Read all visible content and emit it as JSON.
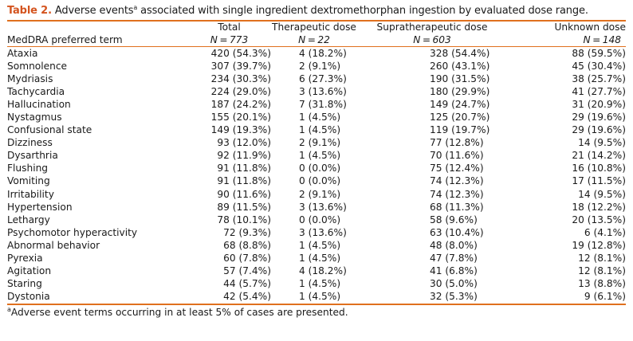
{
  "caption": {
    "label": "Table 2.",
    "text_before": "Adverse events",
    "sup": "a",
    "text_after": " associated with single ingredient dextromethorphan ingestion by evaluated dose range."
  },
  "columns": [
    {
      "title": "",
      "n_label": "MedDRA preferred term"
    },
    {
      "title": "Total",
      "n_label": "N = 773"
    },
    {
      "title": "Therapeutic dose",
      "n_label": "N = 22"
    },
    {
      "title": "Supratherapeutic dose",
      "n_label": "N = 603"
    },
    {
      "title": "Unknown dose",
      "n_label": "N = 148"
    }
  ],
  "rows": [
    {
      "term": "Ataxia",
      "total": "420 (54.3%)",
      "therapeutic": "4 (18.2%)",
      "supra": "328 (54.4%)",
      "unknown": "88 (59.5%)"
    },
    {
      "term": "Somnolence",
      "total": "307 (39.7%)",
      "therapeutic": "2 (9.1%)",
      "supra": "260 (43.1%)",
      "unknown": "45 (30.4%)"
    },
    {
      "term": "Mydriasis",
      "total": "234 (30.3%)",
      "therapeutic": "6 (27.3%)",
      "supra": "190 (31.5%)",
      "unknown": "38 (25.7%)"
    },
    {
      "term": "Tachycardia",
      "total": "224 (29.0%)",
      "therapeutic": "3 (13.6%)",
      "supra": "180 (29.9%)",
      "unknown": "41 (27.7%)"
    },
    {
      "term": "Hallucination",
      "total": "187 (24.2%)",
      "therapeutic": "7 (31.8%)",
      "supra": "149 (24.7%)",
      "unknown": "31 (20.9%)"
    },
    {
      "term": "Nystagmus",
      "total": "155 (20.1%)",
      "therapeutic": "1 (4.5%)",
      "supra": "125 (20.7%)",
      "unknown": "29 (19.6%)"
    },
    {
      "term": "Confusional state",
      "total": "149 (19.3%)",
      "therapeutic": "1 (4.5%)",
      "supra": "119 (19.7%)",
      "unknown": "29 (19.6%)"
    },
    {
      "term": "Dizziness",
      "total": "93 (12.0%)",
      "therapeutic": "2 (9.1%)",
      "supra": "77 (12.8%)",
      "unknown": "14 (9.5%)"
    },
    {
      "term": "Dysarthria",
      "total": "92 (11.9%)",
      "therapeutic": "1 (4.5%)",
      "supra": "70 (11.6%)",
      "unknown": "21 (14.2%)"
    },
    {
      "term": "Flushing",
      "total": "91 (11.8%)",
      "therapeutic": "0 (0.0%)",
      "supra": "75 (12.4%)",
      "unknown": "16 (10.8%)"
    },
    {
      "term": "Vomiting",
      "total": "91 (11.8%)",
      "therapeutic": "0 (0.0%)",
      "supra": "74 (12.3%)",
      "unknown": "17 (11.5%)"
    },
    {
      "term": "Irritability",
      "total": "90 (11.6%)",
      "therapeutic": "2 (9.1%)",
      "supra": "74 (12.3%)",
      "unknown": "14 (9.5%)"
    },
    {
      "term": "Hypertension",
      "total": "89 (11.5%)",
      "therapeutic": "3 (13.6%)",
      "supra": "68 (11.3%)",
      "unknown": "18 (12.2%)"
    },
    {
      "term": "Lethargy",
      "total": "78 (10.1%)",
      "therapeutic": "0 (0.0%)",
      "supra": "58 (9.6%)",
      "unknown": "20 (13.5%)"
    },
    {
      "term": "Psychomotor hyperactivity",
      "total": "72 (9.3%)",
      "therapeutic": "3 (13.6%)",
      "supra": "63 (10.4%)",
      "unknown": "6 (4.1%)"
    },
    {
      "term": "Abnormal behavior",
      "total": "68 (8.8%)",
      "therapeutic": "1 (4.5%)",
      "supra": "48 (8.0%)",
      "unknown": "19 (12.8%)"
    },
    {
      "term": "Pyrexia",
      "total": "60 (7.8%)",
      "therapeutic": "1 (4.5%)",
      "supra": "47 (7.8%)",
      "unknown": "12 (8.1%)"
    },
    {
      "term": "Agitation",
      "total": "57 (7.4%)",
      "therapeutic": "4 (18.2%)",
      "supra": "41 (6.8%)",
      "unknown": "12 (8.1%)"
    },
    {
      "term": "Staring",
      "total": "44 (5.7%)",
      "therapeutic": "1 (4.5%)",
      "supra": "30 (5.0%)",
      "unknown": "13 (8.8%)"
    },
    {
      "term": "Dystonia",
      "total": "42 (5.4%)",
      "therapeutic": "1 (4.5%)",
      "supra": "32 (5.3%)",
      "unknown": "9 (6.1%)"
    }
  ],
  "footnote": {
    "sup": "a",
    "text": "Adverse event terms occurring in at least 5% of cases are presented."
  },
  "colors": {
    "accent": "#d4541f",
    "rule": "#e0701e",
    "text": "#1a1a1a"
  }
}
